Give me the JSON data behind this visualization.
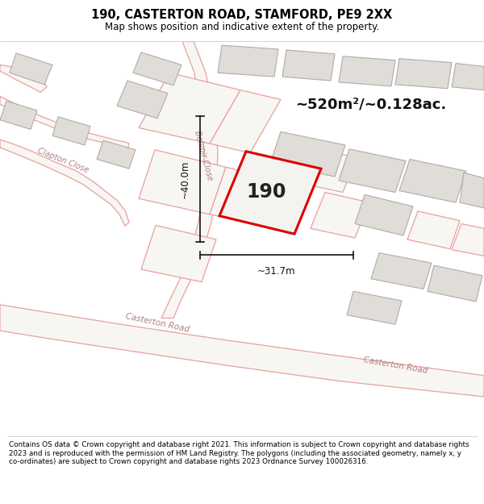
{
  "title_line1": "190, CASTERTON ROAD, STAMFORD, PE9 2XX",
  "title_line2": "Map shows position and indicative extent of the property.",
  "area_text": "~520m²/~0.128ac.",
  "property_number": "190",
  "dim_width": "~31.7m",
  "dim_height": "~40.0m",
  "footer_text": "Contains OS data © Crown copyright and database right 2021. This information is subject to Crown copyright and database rights 2023 and is reproduced with the permission of HM Land Registry. The polygons (including the associated geometry, namely x, y co-ordinates) are subject to Crown copyright and database rights 2023 Ordnance Survey 100026316.",
  "map_bg": "#f5f3f0",
  "building_fill": "#e0ddd8",
  "building_edge": "#b0acA8",
  "plot_outline_color": "#dd0000",
  "road_outline_color": "#e8a0a0",
  "road_fill": "#f5f3f0",
  "dim_line_color": "#111111",
  "street_label_color": "#b08080",
  "title_bg": "#ffffff",
  "footer_bg": "#ffffff",
  "separator_color": "#cccccc"
}
